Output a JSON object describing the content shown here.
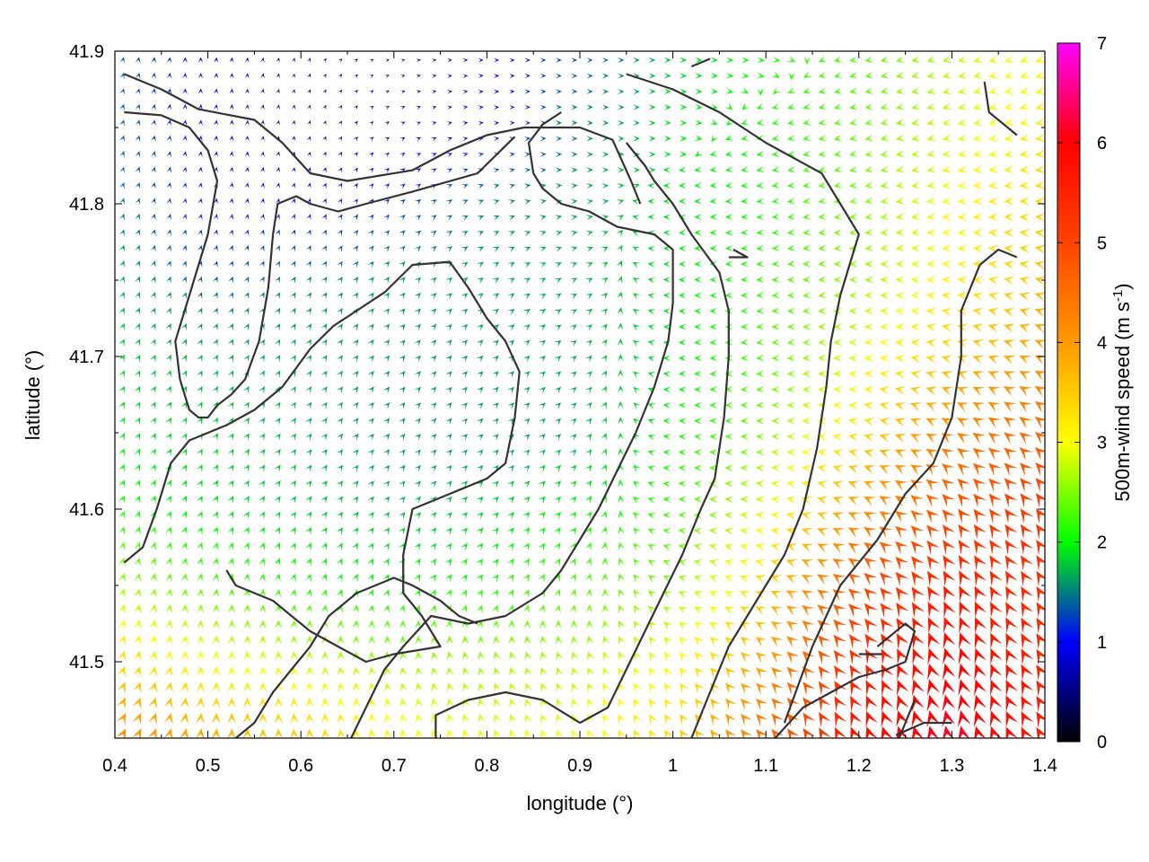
{
  "chart_data": {
    "type": "heatmap",
    "subtype": "wind-vector-field",
    "xlabel": "longitude (°)",
    "ylabel": "latitude (°)",
    "xlim": [
      0.4,
      1.4
    ],
    "ylim": [
      41.45,
      41.9
    ],
    "xticks": [
      {
        "v": 0.4,
        "label": "0.4"
      },
      {
        "v": 0.5,
        "label": "0.5"
      },
      {
        "v": 0.6,
        "label": "0.6"
      },
      {
        "v": 0.7,
        "label": "0.7"
      },
      {
        "v": 0.8,
        "label": "0.8"
      },
      {
        "v": 0.9,
        "label": "0.9"
      },
      {
        "v": 1.0,
        "label": "1"
      },
      {
        "v": 1.1,
        "label": "1.1"
      },
      {
        "v": 1.2,
        "label": "1.2"
      },
      {
        "v": 1.3,
        "label": "1.3"
      },
      {
        "v": 1.4,
        "label": "1.4"
      }
    ],
    "yticks": [
      {
        "v": 41.5,
        "label": "41.5"
      },
      {
        "v": 41.6,
        "label": "41.6"
      },
      {
        "v": 41.7,
        "label": "41.7"
      },
      {
        "v": 41.8,
        "label": "41.8"
      },
      {
        "v": 41.9,
        "label": "41.9"
      }
    ],
    "colorbar": {
      "label": "500m-wind speed (m s",
      "label_sup": "-1",
      "label_close": ")",
      "range": [
        0,
        7
      ],
      "ticks": [
        {
          "v": 0,
          "label": "0"
        },
        {
          "v": 1,
          "label": "1"
        },
        {
          "v": 2,
          "label": "2"
        },
        {
          "v": 3,
          "label": "3"
        },
        {
          "v": 4,
          "label": "4"
        },
        {
          "v": 5,
          "label": "5"
        },
        {
          "v": 6,
          "label": "6"
        },
        {
          "v": 7,
          "label": "7"
        }
      ],
      "palette": [
        [
          0,
          "#000000"
        ],
        [
          1,
          "#0000ff"
        ],
        [
          1.5,
          "#007f7f"
        ],
        [
          2,
          "#00ff00"
        ],
        [
          3,
          "#ffff00"
        ],
        [
          4,
          "#ff9900"
        ],
        [
          5,
          "#ff4400"
        ],
        [
          6,
          "#ff0000"
        ],
        [
          7,
          "#ff00ff"
        ]
      ]
    },
    "speed_field": {
      "lon": [
        0.4,
        0.5,
        0.6,
        0.7,
        0.8,
        0.9,
        1.0,
        1.1,
        1.2,
        1.3,
        1.4
      ],
      "lat": [
        41.45,
        41.5,
        41.55,
        41.6,
        41.65,
        41.7,
        41.75,
        41.8,
        41.85,
        41.9
      ],
      "values": [
        [
          4.2,
          3.8,
          3.5,
          3.1,
          2.9,
          3.0,
          3.4,
          4.5,
          5.8,
          6.2,
          5.6
        ],
        [
          3.4,
          3.0,
          2.8,
          2.6,
          2.6,
          2.7,
          3.0,
          3.9,
          5.4,
          6.0,
          5.5
        ],
        [
          2.6,
          2.3,
          2.1,
          2.0,
          2.1,
          2.3,
          2.5,
          3.4,
          4.8,
          5.6,
          5.3
        ],
        [
          2.1,
          1.9,
          1.8,
          1.7,
          1.8,
          2.0,
          2.2,
          2.9,
          4.0,
          4.9,
          5.2
        ],
        [
          1.9,
          1.8,
          1.7,
          1.6,
          1.6,
          1.7,
          2.0,
          2.5,
          3.3,
          4.2,
          4.6
        ],
        [
          1.8,
          1.7,
          1.7,
          1.6,
          1.6,
          1.7,
          1.9,
          2.3,
          2.9,
          3.5,
          4.0
        ],
        [
          1.7,
          1.3,
          1.5,
          1.6,
          1.7,
          1.7,
          1.9,
          2.2,
          2.6,
          3.1,
          3.6
        ],
        [
          1.5,
          1.0,
          1.0,
          1.2,
          1.5,
          1.7,
          1.9,
          2.1,
          2.5,
          3.0,
          3.4
        ],
        [
          1.4,
          1.0,
          0.6,
          0.6,
          1.0,
          1.5,
          1.9,
          2.1,
          2.4,
          2.8,
          3.2
        ],
        [
          1.4,
          1.0,
          0.5,
          0.3,
          0.9,
          1.3,
          1.8,
          2.1,
          2.3,
          2.7,
          3.1
        ]
      ]
    },
    "direction_field": {
      "lon": [
        0.4,
        0.5,
        0.6,
        0.7,
        0.8,
        0.9,
        1.0,
        1.1,
        1.2,
        1.3,
        1.4
      ],
      "lat": [
        41.45,
        41.5,
        41.55,
        41.6,
        41.65,
        41.7,
        41.75,
        41.8,
        41.85,
        41.9
      ],
      "bearing_deg": [
        [
          30,
          5,
          355,
          350,
          345,
          340,
          330,
          320,
          340,
          350,
          330
        ],
        [
          20,
          0,
          355,
          350,
          345,
          340,
          325,
          310,
          330,
          345,
          330
        ],
        [
          15,
          5,
          15,
          25,
          35,
          20,
          290,
          290,
          310,
          335,
          330
        ],
        [
          20,
          25,
          35,
          40,
          45,
          40,
          270,
          275,
          295,
          320,
          325
        ],
        [
          25,
          30,
          35,
          40,
          45,
          45,
          275,
          270,
          280,
          300,
          310
        ],
        [
          25,
          25,
          30,
          40,
          45,
          50,
          270,
          265,
          270,
          285,
          295
        ],
        [
          20,
          20,
          30,
          40,
          55,
          65,
          270,
          265,
          268,
          275,
          285
        ],
        [
          20,
          10,
          15,
          45,
          70,
          85,
          270,
          265,
          262,
          265,
          270
        ],
        [
          20,
          5,
          10,
          60,
          85,
          90,
          90,
          260,
          260,
          258,
          260
        ],
        [
          15,
          0,
          20,
          80,
          90,
          90,
          90,
          95,
          260,
          255,
          250
        ]
      ]
    },
    "contours": [
      [
        [
          0.41,
          41.885
        ],
        [
          0.45,
          41.875
        ],
        [
          0.49,
          41.862
        ],
        [
          0.55,
          41.855
        ],
        [
          0.58,
          41.84
        ],
        [
          0.61,
          41.82
        ],
        [
          0.65,
          41.815
        ],
        [
          0.72,
          41.822
        ],
        [
          0.76,
          41.835
        ],
        [
          0.8,
          41.845
        ],
        [
          0.84,
          41.85
        ],
        [
          0.9,
          41.85
        ],
        [
          0.935,
          41.842
        ],
        [
          0.955,
          41.815
        ],
        [
          0.965,
          41.8
        ]
      ],
      [
        [
          0.41,
          41.86
        ],
        [
          0.45,
          41.858
        ],
        [
          0.48,
          41.85
        ],
        [
          0.5,
          41.835
        ],
        [
          0.51,
          41.815
        ],
        [
          0.5,
          41.78
        ],
        [
          0.48,
          41.74
        ],
        [
          0.465,
          41.71
        ],
        [
          0.47,
          41.685
        ],
        [
          0.48,
          41.665
        ],
        [
          0.49,
          41.66
        ],
        [
          0.5,
          41.66
        ],
        [
          0.51,
          41.668
        ],
        [
          0.525,
          41.675
        ],
        [
          0.54,
          41.685
        ],
        [
          0.555,
          41.71
        ],
        [
          0.565,
          41.745
        ],
        [
          0.57,
          41.78
        ],
        [
          0.575,
          41.8
        ],
        [
          0.595,
          41.805
        ],
        [
          0.61,
          41.8
        ],
        [
          0.64,
          41.795
        ],
        [
          0.67,
          41.8
        ],
        [
          0.72,
          41.808
        ],
        [
          0.79,
          41.82
        ],
        [
          0.83,
          41.844
        ]
      ],
      [
        [
          0.41,
          41.565
        ],
        [
          0.43,
          41.575
        ],
        [
          0.445,
          41.6
        ],
        [
          0.46,
          41.63
        ],
        [
          0.48,
          41.645
        ],
        [
          0.52,
          41.655
        ],
        [
          0.55,
          41.665
        ],
        [
          0.58,
          41.68
        ],
        [
          0.61,
          41.705
        ],
        [
          0.635,
          41.72
        ],
        [
          0.66,
          41.73
        ],
        [
          0.69,
          41.742
        ],
        [
          0.72,
          41.76
        ],
        [
          0.76,
          41.762
        ],
        [
          0.78,
          41.745
        ],
        [
          0.8,
          41.725
        ],
        [
          0.82,
          41.71
        ],
        [
          0.835,
          41.69
        ],
        [
          0.83,
          41.66
        ],
        [
          0.82,
          41.63
        ],
        [
          0.8,
          41.62
        ],
        [
          0.76,
          41.61
        ],
        [
          0.72,
          41.6
        ],
        [
          0.71,
          41.57
        ],
        [
          0.71,
          41.545
        ],
        [
          0.73,
          41.53
        ],
        [
          0.75,
          41.51
        ],
        [
          0.7,
          41.505
        ],
        [
          0.67,
          41.5
        ],
        [
          0.64,
          41.51
        ],
        [
          0.61,
          41.52
        ],
        [
          0.59,
          41.53
        ],
        [
          0.57,
          41.54
        ],
        [
          0.55,
          41.545
        ],
        [
          0.53,
          41.55
        ],
        [
          0.52,
          41.56
        ]
      ],
      [
        [
          0.52,
          41.445
        ],
        [
          0.55,
          41.46
        ],
        [
          0.57,
          41.48
        ],
        [
          0.59,
          41.495
        ],
        [
          0.61,
          41.51
        ],
        [
          0.63,
          41.53
        ],
        [
          0.66,
          41.545
        ],
        [
          0.68,
          41.55
        ],
        [
          0.7,
          41.555
        ],
        [
          0.72,
          41.55
        ],
        [
          0.75,
          41.54
        ],
        [
          0.77,
          41.53
        ],
        [
          0.79,
          41.525
        ]
      ],
      [
        [
          0.65,
          41.445
        ],
        [
          0.67,
          41.47
        ],
        [
          0.69,
          41.495
        ],
        [
          0.71,
          41.51
        ],
        [
          0.74,
          41.53
        ],
        [
          0.78,
          41.525
        ],
        [
          0.82,
          41.53
        ],
        [
          0.86,
          41.545
        ],
        [
          0.88,
          41.56
        ],
        [
          0.9,
          41.58
        ],
        [
          0.92,
          41.6
        ],
        [
          0.94,
          41.625
        ],
        [
          0.96,
          41.65
        ],
        [
          0.98,
          41.68
        ],
        [
          0.995,
          41.71
        ],
        [
          1.0,
          41.735
        ],
        [
          1.0,
          41.76
        ],
        [
          1.0,
          41.77
        ],
        [
          0.98,
          41.78
        ],
        [
          0.94,
          41.785
        ],
        [
          0.91,
          41.795
        ],
        [
          0.88,
          41.8
        ],
        [
          0.86,
          41.81
        ],
        [
          0.85,
          41.82
        ],
        [
          0.845,
          41.84
        ],
        [
          0.86,
          41.852
        ],
        [
          0.88,
          41.86
        ]
      ],
      [
        [
          0.745,
          41.445
        ],
        [
          0.745,
          41.465
        ],
        [
          0.78,
          41.475
        ],
        [
          0.82,
          41.48
        ],
        [
          0.86,
          41.475
        ],
        [
          0.9,
          41.46
        ],
        [
          0.93,
          41.47
        ],
        [
          0.95,
          41.495
        ],
        [
          0.97,
          41.52
        ],
        [
          0.99,
          41.545
        ],
        [
          1.01,
          41.57
        ],
        [
          1.03,
          41.6
        ],
        [
          1.045,
          41.62
        ],
        [
          1.055,
          41.66
        ],
        [
          1.06,
          41.7
        ],
        [
          1.06,
          41.73
        ],
        [
          1.05,
          41.755
        ],
        [
          1.02,
          41.78
        ],
        [
          1.0,
          41.8
        ],
        [
          0.98,
          41.815
        ],
        [
          0.97,
          41.825
        ],
        [
          0.95,
          41.84
        ]
      ],
      [
        [
          1.02,
          41.45
        ],
        [
          1.04,
          41.48
        ],
        [
          1.06,
          41.51
        ],
        [
          1.09,
          41.54
        ],
        [
          1.12,
          41.57
        ],
        [
          1.14,
          41.6
        ],
        [
          1.155,
          41.64
        ],
        [
          1.165,
          41.68
        ],
        [
          1.17,
          41.71
        ],
        [
          1.18,
          41.74
        ],
        [
          1.19,
          41.76
        ],
        [
          1.2,
          41.78
        ],
        [
          1.18,
          41.8
        ],
        [
          1.16,
          41.82
        ],
        [
          1.1,
          41.84
        ],
        [
          1.05,
          41.86
        ],
        [
          1.0,
          41.875
        ],
        [
          0.95,
          41.885
        ]
      ],
      [
        [
          1.11,
          41.45
        ],
        [
          1.14,
          41.47
        ],
        [
          1.17,
          41.48
        ],
        [
          1.2,
          41.49
        ],
        [
          1.23,
          41.495
        ],
        [
          1.25,
          41.5
        ],
        [
          1.26,
          41.52
        ],
        [
          1.25,
          41.525
        ],
        [
          1.24,
          41.52
        ],
        [
          1.22,
          41.51
        ]
      ],
      [
        [
          1.2,
          41.505
        ],
        [
          1.225,
          41.505
        ]
      ],
      [
        [
          1.24,
          41.445
        ],
        [
          1.25,
          41.46
        ],
        [
          1.26,
          41.475
        ]
      ],
      [
        [
          1.12,
          41.46
        ],
        [
          1.15,
          41.51
        ],
        [
          1.18,
          41.55
        ],
        [
          1.22,
          41.58
        ],
        [
          1.25,
          41.61
        ],
        [
          1.28,
          41.63
        ],
        [
          1.3,
          41.66
        ],
        [
          1.31,
          41.7
        ],
        [
          1.31,
          41.73
        ],
        [
          1.33,
          41.76
        ],
        [
          1.35,
          41.77
        ],
        [
          1.37,
          41.765
        ]
      ],
      [
        [
          1.065,
          41.77
        ],
        [
          1.08,
          41.765
        ],
        [
          1.06,
          41.765
        ]
      ],
      [
        [
          1.335,
          41.88
        ],
        [
          1.34,
          41.86
        ],
        [
          1.37,
          41.845
        ]
      ],
      [
        [
          1.02,
          41.89
        ],
        [
          1.04,
          41.895
        ]
      ],
      [
        [
          1.24,
          41.452
        ],
        [
          1.27,
          41.46
        ],
        [
          1.3,
          41.46
        ]
      ]
    ]
  }
}
